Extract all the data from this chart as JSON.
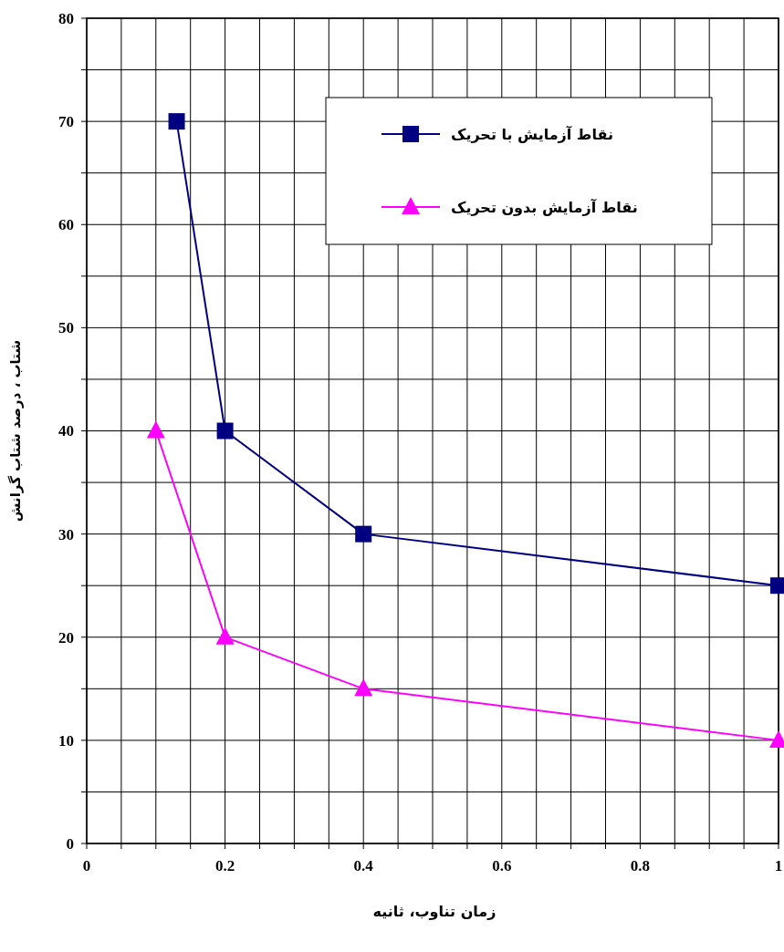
{
  "chart_data": {
    "type": "line",
    "xlabel": "زمان تناوب، ثانیه",
    "ylabel": "شتاب ، درصد شتاب گرانش",
    "series": [
      {
        "name": "نقاط آزمایش با تحریک",
        "color": "#000080",
        "marker": "square",
        "x": [
          0.13,
          0.2,
          0.4,
          1
        ],
        "values": [
          70,
          40,
          30,
          25
        ]
      },
      {
        "name": "نقاط آزمایش بدون تحریک",
        "color": "#ff00ff",
        "marker": "triangle",
        "x": [
          0.1,
          0.2,
          0.4,
          1
        ],
        "values": [
          40,
          20,
          15,
          10
        ]
      }
    ],
    "xlim": [
      0,
      1
    ],
    "ylim": [
      0,
      80
    ],
    "xticks": [
      0,
      {
        "value": 0.05,
        "label": null
      },
      {
        "value": 0.1,
        "label": null
      },
      {
        "value": 0.15,
        "label": null
      },
      0.2,
      {
        "value": 0.25,
        "label": null
      },
      {
        "value": 0.3,
        "label": null
      },
      {
        "value": 0.35,
        "label": null
      },
      0.4,
      {
        "value": 0.45,
        "label": null
      },
      {
        "value": 0.5,
        "label": null
      },
      {
        "value": 0.55,
        "label": null
      },
      0.6,
      {
        "value": 0.65,
        "label": null
      },
      {
        "value": 0.7,
        "label": null
      },
      {
        "value": 0.75,
        "label": null
      },
      0.8,
      {
        "value": 0.85,
        "label": null
      },
      {
        "value": 0.9,
        "label": null
      },
      {
        "value": 0.95,
        "label": null
      },
      1
    ],
    "yticks": [
      0,
      {
        "value": 5,
        "label": null
      },
      10,
      {
        "value": 15,
        "label": null
      },
      20,
      {
        "value": 25,
        "label": null
      },
      30,
      {
        "value": 35,
        "label": null
      },
      40,
      {
        "value": 45,
        "label": null
      },
      50,
      {
        "value": 55,
        "label": null
      },
      60,
      {
        "value": 65,
        "label": null
      },
      70,
      {
        "value": 75,
        "label": null
      },
      80
    ],
    "grid": true,
    "legend": "top right",
    "line_style": "solid"
  }
}
